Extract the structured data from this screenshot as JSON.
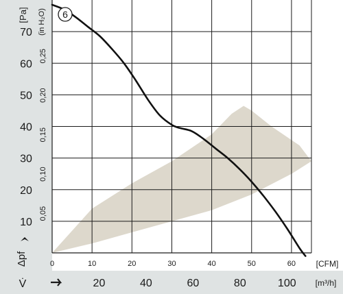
{
  "chart_data": {
    "type": "line",
    "title": "",
    "curve_label": "6",
    "x_primary": {
      "label": "[CFM]",
      "range": [
        0,
        65
      ],
      "ticks": [
        0,
        10,
        20,
        30,
        40,
        50,
        60
      ]
    },
    "x_secondary": {
      "label": "[m³/h]",
      "symbol": "V̇",
      "ticks": [
        20,
        40,
        60,
        80,
        100
      ]
    },
    "y_primary": {
      "label": "[Pa]",
      "symbol": "Δpf",
      "range": [
        0,
        80
      ],
      "ticks": [
        10,
        20,
        30,
        40,
        50,
        60,
        70
      ]
    },
    "y_secondary": {
      "label": "(in H₂O)",
      "ticks": [
        "0,05",
        "0,10",
        "0,15",
        "0,20",
        "0,25"
      ],
      "values": [
        0.05,
        0.1,
        0.15,
        0.2,
        0.25
      ]
    },
    "grid": true,
    "series": [
      {
        "x": [
          0,
          3,
          6,
          9,
          12,
          15,
          18,
          21,
          24,
          27,
          30,
          32,
          35,
          38,
          41,
          44,
          47,
          50,
          53,
          56,
          59,
          62,
          63.5
        ],
        "y": [
          78.5,
          77,
          74.5,
          71.5,
          68.5,
          64.5,
          60,
          54.5,
          48.5,
          43.5,
          40.5,
          39.5,
          38.5,
          36,
          33,
          30,
          26.5,
          22.5,
          18,
          13,
          7.5,
          1.5,
          -1
        ]
      }
    ],
    "operating_region": {
      "x": [
        0,
        10,
        20,
        30,
        40,
        50,
        60,
        65,
        62,
        55,
        50,
        48,
        45,
        40,
        30,
        20,
        10,
        0
      ],
      "y": [
        0,
        3,
        6.5,
        10,
        13.5,
        18.5,
        25,
        29,
        34,
        40,
        45,
        46.5,
        44,
        37.5,
        29,
        22,
        14,
        0
      ]
    }
  }
}
